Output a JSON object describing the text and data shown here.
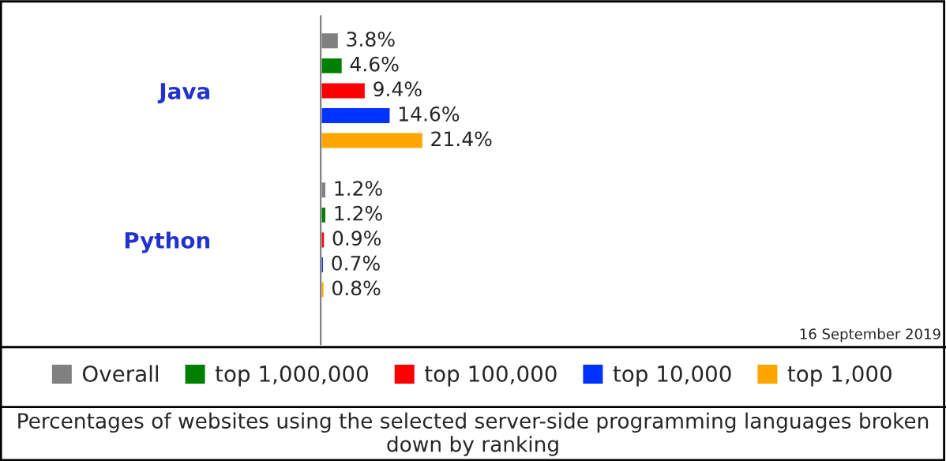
{
  "chart_data": {
    "type": "bar",
    "orientation": "horizontal",
    "title": "Percentages of websites using the selected server-side programming languages broken down by ranking",
    "categories": [
      "Java",
      "Python"
    ],
    "series": [
      {
        "name": "Overall",
        "color": "#808080",
        "values": [
          3.8,
          1.2
        ],
        "value_labels": [
          "3.8%",
          "1.2%"
        ]
      },
      {
        "name": "top 1,000,000",
        "color": "#008000",
        "values": [
          4.6,
          1.2
        ],
        "value_labels": [
          "4.6%",
          "1.2%"
        ]
      },
      {
        "name": "top 100,000",
        "color": "#ff0000",
        "values": [
          9.4,
          0.9
        ],
        "value_labels": [
          "9.4%",
          "0.9%"
        ]
      },
      {
        "name": "top 10,000",
        "color": "#0033ff",
        "values": [
          14.6,
          0.7
        ],
        "value_labels": [
          "14.6%",
          "0.7%"
        ]
      },
      {
        "name": "top 1,000",
        "color": "#ffa500",
        "values": [
          21.4,
          0.8
        ],
        "value_labels": [
          "21.4%",
          "0.8%"
        ]
      }
    ],
    "legend": "bottom",
    "grid": false,
    "annotations": [
      "16 September 2019"
    ]
  }
}
